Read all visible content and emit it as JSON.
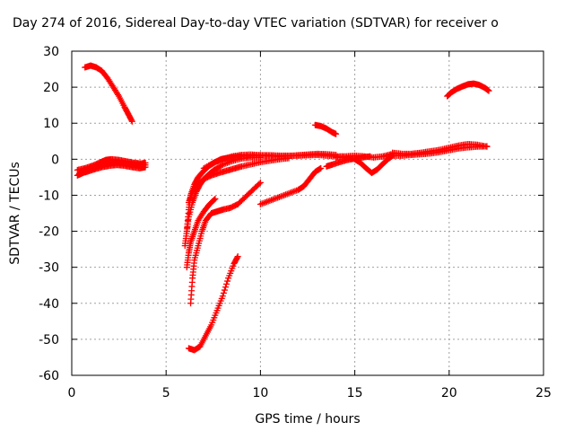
{
  "chart_data": {
    "type": "scatter",
    "title": "Day 274 of 2016, Sidereal Day-to-day VTEC variation (SDTVAR) for receiver o",
    "xlabel": "GPS time / hours",
    "ylabel": "SDTVAR / TECUs",
    "xlim": [
      0,
      25
    ],
    "ylim": [
      -60,
      30
    ],
    "xticks": [
      0,
      5,
      10,
      15,
      20,
      25
    ],
    "yticks": [
      -60,
      -50,
      -40,
      -30,
      -20,
      -10,
      0,
      10,
      20,
      30
    ],
    "grid": true,
    "marker": "plus",
    "color": "#ff0000",
    "series": [
      {
        "x": [
          0.7,
          1.0,
          1.3,
          1.6,
          1.9,
          2.2,
          2.5,
          2.8,
          3.0,
          3.2
        ],
        "y": [
          25.5,
          26.0,
          25.5,
          24.5,
          22.5,
          20.0,
          17.5,
          14.5,
          12.5,
          10.5
        ]
      },
      {
        "x": [
          0.3,
          0.6,
          0.9,
          1.2,
          1.5,
          1.8,
          2.1,
          2.4,
          2.7,
          3.0,
          3.3,
          3.6,
          3.9
        ],
        "y": [
          -4.5,
          -3.8,
          -3.0,
          -2.4,
          -1.8,
          -1.3,
          -1.0,
          -0.9,
          -1.0,
          -1.2,
          -1.4,
          -1.5,
          -1.6
        ]
      },
      {
        "x": [
          0.3,
          0.7,
          1.1,
          1.5,
          1.8,
          2.1,
          2.5,
          2.9,
          3.3,
          3.7,
          3.9
        ],
        "y": [
          -3.0,
          -2.5,
          -1.8,
          -0.9,
          -0.2,
          0.0,
          -0.2,
          -0.6,
          -1.0,
          -1.2,
          -1.0
        ]
      },
      {
        "x": [
          0.4,
          0.8,
          1.2,
          1.6,
          2.0,
          2.4,
          2.8,
          3.2,
          3.6,
          3.9
        ],
        "y": [
          -4.0,
          -3.5,
          -2.8,
          -2.2,
          -1.8,
          -1.6,
          -1.8,
          -2.2,
          -2.5,
          -2.2
        ]
      },
      {
        "x": [
          6.1,
          6.2,
          6.3,
          6.5,
          6.7,
          7.0,
          7.3,
          7.6,
          7.9,
          8.2,
          8.6,
          9.0,
          9.5,
          10.0,
          10.5,
          11.0,
          11.5,
          12.0,
          12.5,
          13.0,
          13.5,
          14.0,
          14.5,
          15.0,
          15.5,
          16.0,
          16.5,
          17.0
        ],
        "y": [
          -20.0,
          -14.0,
          -10.0,
          -7.0,
          -5.0,
          -3.2,
          -1.8,
          -0.8,
          0.0,
          0.3,
          0.6,
          0.8,
          1.0,
          1.1,
          1.1,
          1.0,
          1.0,
          1.0,
          1.1,
          1.2,
          1.0,
          0.8,
          0.8,
          1.0,
          0.8,
          0.5,
          0.8,
          1.5
        ]
      },
      {
        "x": [
          6.2,
          6.4,
          6.7,
          7.0,
          7.4,
          7.8,
          8.2,
          8.6,
          9.0,
          9.5,
          10.0,
          10.5,
          11.0,
          11.5
        ],
        "y": [
          -12.0,
          -9.0,
          -7.0,
          -5.5,
          -4.5,
          -3.8,
          -3.2,
          -2.6,
          -2.0,
          -1.4,
          -0.8,
          -0.4,
          0.0,
          0.3
        ]
      },
      {
        "x": [
          6.0,
          6.1,
          6.2,
          6.4,
          6.6,
          6.8,
          7.0,
          7.3,
          7.6,
          8.0,
          8.5,
          9.0,
          9.5,
          10.0
        ],
        "y": [
          -24.0,
          -20.0,
          -16.0,
          -12.0,
          -9.0,
          -7.0,
          -5.5,
          -4.0,
          -2.8,
          -1.5,
          -0.5,
          0.2,
          0.5,
          0.5
        ]
      },
      {
        "x": [
          7.0,
          7.5,
          8.0,
          8.5,
          9.0,
          9.5,
          10.0,
          10.5,
          11.0,
          11.5,
          12.0,
          12.5,
          13.0,
          13.5,
          14.0
        ],
        "y": [
          -2.5,
          -1.0,
          0.0,
          0.8,
          1.2,
          1.3,
          1.1,
          0.9,
          0.8,
          0.9,
          1.1,
          1.3,
          1.5,
          1.4,
          1.2
        ]
      },
      {
        "x": [
          14.0,
          14.5,
          15.0,
          15.3,
          15.6,
          15.9,
          16.2,
          16.5,
          16.8,
          17.0
        ],
        "y": [
          0.5,
          0.6,
          0.0,
          -1.0,
          -2.5,
          -3.8,
          -2.8,
          -1.2,
          0.2,
          1.0
        ]
      },
      {
        "x": [
          6.1,
          6.2,
          6.3,
          6.5,
          6.7,
          7.0,
          7.3,
          7.6
        ],
        "y": [
          -30.0,
          -26.0,
          -23.0,
          -20.0,
          -17.0,
          -14.5,
          -12.5,
          -11.0
        ]
      },
      {
        "x": [
          6.3,
          6.4,
          6.5,
          6.7,
          6.9,
          7.1,
          7.4,
          7.7,
          8.0,
          8.4,
          8.8,
          9.2,
          9.6,
          10.0
        ],
        "y": [
          -40.0,
          -33.0,
          -28.0,
          -24.0,
          -20.0,
          -17.0,
          -15.0,
          -14.5,
          -14.0,
          -13.5,
          -12.5,
          -10.5,
          -8.5,
          -6.5
        ]
      },
      {
        "x": [
          6.2,
          6.5,
          6.8,
          7.1,
          7.4,
          7.7,
          8.0,
          8.3,
          8.6,
          8.8
        ],
        "y": [
          -52.5,
          -53.0,
          -52.0,
          -49.0,
          -46.0,
          -42.0,
          -38.0,
          -33.0,
          -29.0,
          -27.0
        ]
      },
      {
        "x": [
          10.0,
          10.5,
          11.0,
          11.5,
          12.0,
          12.3,
          12.6,
          12.9,
          13.2
        ],
        "y": [
          -12.5,
          -11.5,
          -10.5,
          -9.5,
          -8.5,
          -7.5,
          -5.5,
          -3.5,
          -2.5
        ]
      },
      {
        "x": [
          13.5,
          13.8,
          14.2,
          14.6,
          15.0,
          15.4,
          15.8
        ],
        "y": [
          -2.0,
          -1.5,
          -0.8,
          -0.2,
          0.2,
          0.5,
          0.8
        ]
      },
      {
        "x": [
          12.9,
          13.2,
          13.5,
          13.8,
          14.0
        ],
        "y": [
          9.5,
          9.2,
          8.5,
          7.5,
          7.0
        ]
      },
      {
        "x": [
          16.5,
          17.0,
          17.5,
          18.0,
          18.5,
          19.0,
          19.5,
          20.0,
          20.5,
          21.0,
          21.5,
          22.0
        ],
        "y": [
          0.8,
          1.0,
          1.0,
          1.2,
          1.4,
          1.6,
          2.0,
          2.5,
          3.0,
          3.3,
          3.5,
          3.6
        ]
      },
      {
        "x": [
          17.0,
          17.5,
          18.0,
          18.5,
          19.0,
          19.5,
          20.0,
          20.5,
          21.0,
          21.5,
          22.0
        ],
        "y": [
          1.8,
          1.5,
          1.5,
          1.8,
          2.2,
          2.6,
          3.2,
          3.8,
          4.2,
          4.0,
          3.5
        ]
      },
      {
        "x": [
          19.9,
          20.1,
          20.4,
          20.7,
          21.0,
          21.3,
          21.6,
          21.9,
          22.1
        ],
        "y": [
          17.5,
          18.5,
          19.5,
          20.2,
          20.8,
          21.0,
          20.6,
          19.8,
          19.0
        ]
      }
    ]
  }
}
